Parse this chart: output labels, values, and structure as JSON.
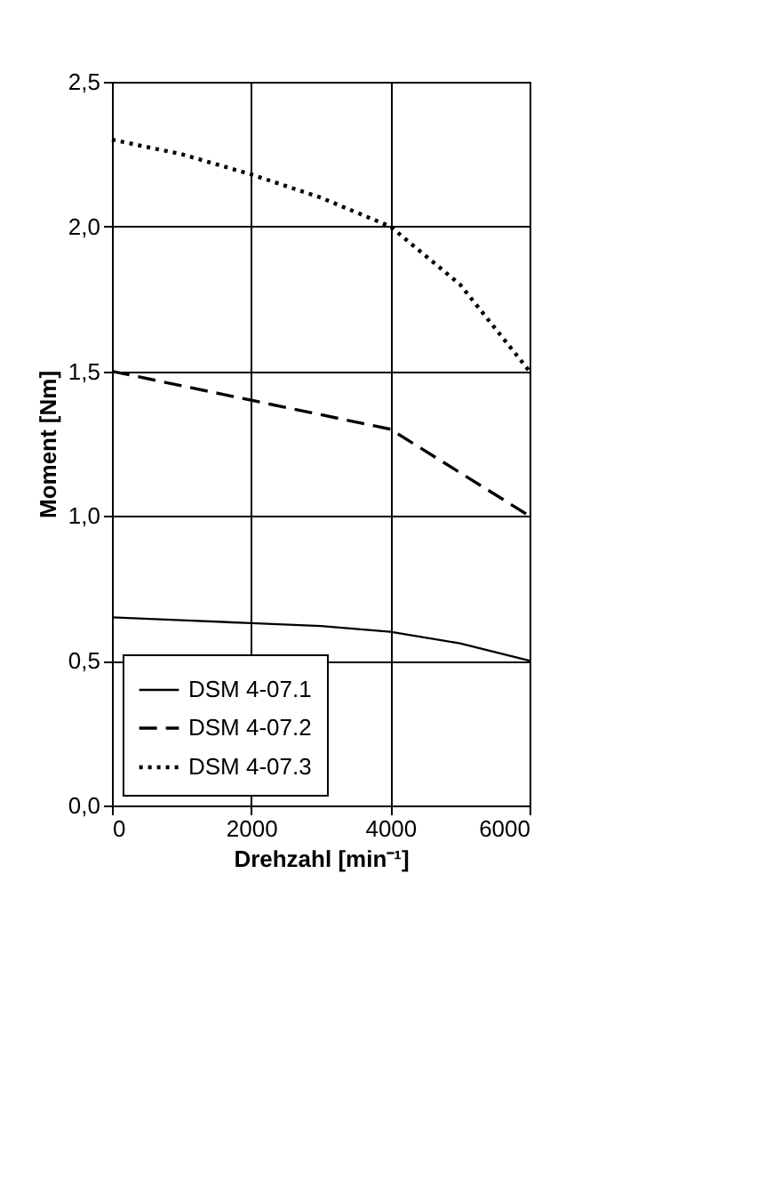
{
  "chart_data": {
    "type": "line",
    "xlabel": "Drehzahl [min⁻¹]",
    "ylabel": "Moment [Nm]",
    "x": [
      0,
      1000,
      2000,
      3000,
      4000,
      5000,
      6000
    ],
    "series": [
      {
        "name": "DSM 4-07.1",
        "color": "#000000",
        "line_style": "solid",
        "values": [
          0.65,
          0.64,
          0.63,
          0.62,
          0.6,
          0.56,
          0.5
        ]
      },
      {
        "name": "DSM 4-07.2",
        "color": "#000000",
        "line_style": "dashed",
        "values": [
          1.5,
          1.45,
          1.4,
          1.35,
          1.3,
          1.15,
          1.0
        ]
      },
      {
        "name": "DSM 4-07.3",
        "color": "#000000",
        "line_style": "dotted",
        "values": [
          2.3,
          2.25,
          2.18,
          2.1,
          2.0,
          1.8,
          1.5
        ]
      }
    ],
    "xlim": [
      0,
      6000
    ],
    "xticks": [
      0,
      2000,
      4000,
      6000
    ],
    "ylim": [
      0,
      2.5
    ],
    "yticks": [
      {
        "value": 0,
        "label": "0,0"
      },
      {
        "value": 0.5,
        "label": "0,5"
      },
      {
        "value": 1.0,
        "label": "1,0"
      },
      {
        "value": 1.5,
        "label": "1,5"
      },
      {
        "value": 2.0,
        "label": "2,0"
      },
      {
        "value": 2.5,
        "label": "2,5"
      }
    ],
    "grid": true,
    "legend": "bottom left",
    "marker": "none"
  }
}
